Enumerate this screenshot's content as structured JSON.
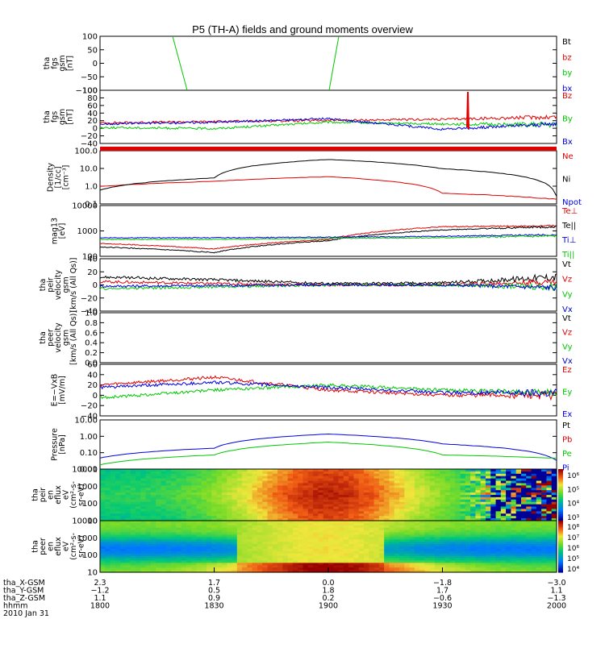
{
  "title": "P5 (TH-A) fields and ground moments overview",
  "colors": {
    "black": "#000000",
    "red": "#e00000",
    "green": "#00c800",
    "blue": "#0000e0"
  },
  "panels": [
    {
      "id": "fgs-gsm",
      "ylabel": [
        "tha",
        "fgs",
        "gsm",
        "[nT]"
      ],
      "ticks": [
        "100",
        "50",
        "0",
        "−50",
        "−100"
      ],
      "legend": [
        {
          "text": "Bt",
          "color": "#000000"
        },
        {
          "text": "bz",
          "color": "#e00000"
        },
        {
          "text": "by",
          "color": "#00c800"
        },
        {
          "text": "bx",
          "color": "#0000e0"
        }
      ]
    },
    {
      "id": "fgs-gsm-zoom",
      "ylabel": [
        "tha",
        "fgs",
        "gsm",
        "[nT]"
      ],
      "ticks": [
        "100",
        "80",
        "60",
        "40",
        "20",
        "0",
        "−20",
        "−40"
      ],
      "legend": [
        {
          "text": "Bz",
          "color": "#e00000"
        },
        {
          "text": "By",
          "color": "#00c800"
        },
        {
          "text": "Bx",
          "color": "#0000e0"
        }
      ]
    },
    {
      "id": "density",
      "ylabel": [
        "Density",
        "[1/cc]",
        "[cm⁻³]"
      ],
      "ticks": [
        "100.0",
        "10.0",
        "1.0",
        "0.1"
      ],
      "legend": [
        {
          "text": "Ne",
          "color": "#e00000"
        },
        {
          "text": "Ni",
          "color": "#000000"
        },
        {
          "text": "Npot",
          "color": "#0000e0"
        }
      ]
    },
    {
      "id": "temperature",
      "ylabel": [
        "mag13",
        "[eV]"
      ],
      "ticks": [
        "10000",
        "1000",
        "100"
      ],
      "legend": [
        {
          "text": "Te⊥",
          "color": "#e00000"
        },
        {
          "text": "Te||",
          "color": "#000000"
        },
        {
          "text": "Ti⊥",
          "color": "#0000e0"
        },
        {
          "text": "Ti||",
          "color": "#00c800"
        }
      ]
    },
    {
      "id": "peir-velocity",
      "ylabel": [
        "tha",
        "peir",
        "velocity",
        "gsm",
        "[km/s (All Qs)]"
      ],
      "ticks": [
        "40",
        "20",
        "0",
        "−20",
        "−40"
      ],
      "legend": [
        {
          "text": "Vt",
          "color": "#000000"
        },
        {
          "text": "Vz",
          "color": "#e00000"
        },
        {
          "text": "Vy",
          "color": "#00c800"
        },
        {
          "text": "Vx",
          "color": "#0000e0"
        }
      ]
    },
    {
      "id": "peer-velocity",
      "ylabel": [
        "tha",
        "peer",
        "velocity",
        "gsm",
        "[km/s (All Qs)]"
      ],
      "ticks": [
        "1.0",
        "0.8",
        "0.6",
        "0.4",
        "0.2",
        "0.0"
      ],
      "legend": [
        {
          "text": "Vt",
          "color": "#000000"
        },
        {
          "text": "Vz",
          "color": "#e00000"
        },
        {
          "text": "Vy",
          "color": "#00c800"
        },
        {
          "text": "Vx",
          "color": "#0000e0"
        }
      ]
    },
    {
      "id": "efield",
      "ylabel": [
        "E=−VxB",
        "[mV/m]"
      ],
      "ticks": [
        "60",
        "40",
        "20",
        "0",
        "−20",
        "−40"
      ],
      "legend": [
        {
          "text": "Ez",
          "color": "#e00000"
        },
        {
          "text": "Ey",
          "color": "#00c800"
        },
        {
          "text": "Ex",
          "color": "#0000e0"
        }
      ]
    },
    {
      "id": "pressure",
      "ylabel": [
        "Pressure",
        "[nPa]"
      ],
      "ticks": [
        "10.00",
        "1.00",
        "0.10",
        "0.01"
      ],
      "legend": [
        {
          "text": "Pt",
          "color": "#000000"
        },
        {
          "text": "Pb",
          "color": "#e00000"
        },
        {
          "text": "Pe",
          "color": "#00c800"
        },
        {
          "text": "Pi",
          "color": "#0000e0"
        }
      ]
    },
    {
      "id": "peir-eflux",
      "ylabel": [
        "tha",
        "peir",
        "en",
        "eflux",
        "eV",
        "(cm²-s-",
        "sr-eV)"
      ],
      "ticks": [
        "10000",
        "1000",
        "100",
        "10"
      ],
      "colorbar": [
        "10⁶",
        "10⁵",
        "10⁴",
        "10³"
      ]
    },
    {
      "id": "peer-eflux",
      "ylabel": [
        "tha",
        "peer",
        "en",
        "eflux",
        "eV",
        "(cm²-s-",
        "sr-eV)"
      ],
      "ticks": [
        "10000",
        "1000",
        "100",
        "10"
      ],
      "colorbar": [
        "10⁸",
        "10⁷",
        "10⁶",
        "10⁵",
        "10⁴"
      ]
    }
  ],
  "xaxis": {
    "rows": [
      {
        "label": "tha_X-GSM",
        "values": [
          "2.3",
          "1.7",
          "0.0",
          "−1.8",
          "−3.0"
        ]
      },
      {
        "label": "tha_Y-GSM",
        "values": [
          "−1.2",
          "0.5",
          "1.8",
          "1.7",
          "1.1"
        ]
      },
      {
        "label": "tha_Z-GSM",
        "values": [
          "1.1",
          "0.9",
          "0.2",
          "−0.6",
          "−1.3"
        ]
      },
      {
        "label": "hhmm",
        "values": [
          "1800",
          "1830",
          "1900",
          "1930",
          "2000"
        ]
      }
    ],
    "date": "2010 Jan 31"
  },
  "chart_data": {
    "type": "line",
    "title": "P5 (TH-A) fields and ground moments overview",
    "x_label": "hhmm",
    "x": [
      "1800",
      "1830",
      "1900",
      "1930",
      "2000"
    ],
    "panels": [
      {
        "name": "tha fgs gsm [nT]",
        "ylim": [
          -100,
          100
        ],
        "series": [
          {
            "name": "Bt",
            "values": [
              null,
              null,
              null,
              null,
              null
            ]
          },
          {
            "name": "bz",
            "values": [
              null,
              null,
              null,
              null,
              null
            ]
          },
          {
            "name": "by",
            "values": [
              null,
              null,
              null,
              null,
              null
            ]
          },
          {
            "name": "bx",
            "values": [
              null,
              null,
              null,
              null,
              null
            ]
          }
        ]
      },
      {
        "name": "tha fgs gsm [nT] (zoom)",
        "ylim": [
          -50,
          100
        ],
        "series": [
          {
            "name": "Bz",
            "values": [
              8,
              12,
              15,
              18,
              25
            ]
          },
          {
            "name": "By",
            "values": [
              -5,
              -8,
              10,
              5,
              2
            ]
          },
          {
            "name": "Bx",
            "values": [
              5,
              10,
              20,
              -10,
              5
            ]
          }
        ]
      },
      {
        "name": "Density [1/cc]",
        "scale": "log",
        "ylim": [
          0.05,
          150
        ],
        "series": [
          {
            "name": "Ne",
            "values": [
              0.7,
              1.5,
              3.0,
              0.25,
              0.1
            ]
          },
          {
            "name": "Ni",
            "values": [
              0.4,
              2.5,
              40,
              10,
              0.15
            ]
          }
        ]
      },
      {
        "name": "mag13 [eV]",
        "scale": "log",
        "ylim": [
          40,
          10000
        ],
        "series": [
          {
            "name": "Te⊥",
            "values": [
              160,
              90,
              250,
              1000,
              1100
            ]
          },
          {
            "name": "Te||",
            "values": [
              110,
              60,
              220,
              700,
              1000
            ]
          },
          {
            "name": "Ti⊥",
            "values": [
              300,
              300,
              320,
              350,
              420
            ]
          },
          {
            "name": "Ti||",
            "values": [
              250,
              250,
              280,
              300,
              360
            ]
          }
        ]
      },
      {
        "name": "tha peir velocity gsm [km/s (All Qs)]",
        "ylim": [
          -40,
          40
        ],
        "series": [
          {
            "name": "Vt",
            "values": [
              12,
              8,
              2,
              3,
              12
            ]
          },
          {
            "name": "Vz",
            "values": [
              5,
              2,
              0,
              0,
              5
            ]
          },
          {
            "name": "Vy",
            "values": [
              -6,
              -3,
              0,
              0,
              -3
            ]
          },
          {
            "name": "Vx",
            "values": [
              -2,
              -1,
              0,
              0,
              -4
            ]
          }
        ]
      },
      {
        "name": "tha peer velocity gsm [km/s (All Qs)]",
        "ylim": [
          0,
          1
        ],
        "series": []
      },
      {
        "name": "E=-VxB [mV/m]",
        "ylim": [
          -40,
          60
        ],
        "series": [
          {
            "name": "Ez",
            "values": [
              20,
              35,
              10,
              0,
              0
            ]
          },
          {
            "name": "Ey",
            "values": [
              -5,
              10,
              20,
              10,
              5
            ]
          },
          {
            "name": "Ex",
            "values": [
              15,
              25,
              15,
              5,
              5
            ]
          }
        ]
      },
      {
        "name": "Pressure [nPa]",
        "scale": "log",
        "ylim": [
          0.005,
          15
        ],
        "series": [
          {
            "name": "Pi",
            "values": [
              0.03,
              0.15,
              1.5,
              0.3,
              0.02
            ]
          },
          {
            "name": "Pe",
            "values": [
              0.01,
              0.05,
              0.4,
              0.05,
              0.03
            ]
          }
        ]
      }
    ]
  }
}
